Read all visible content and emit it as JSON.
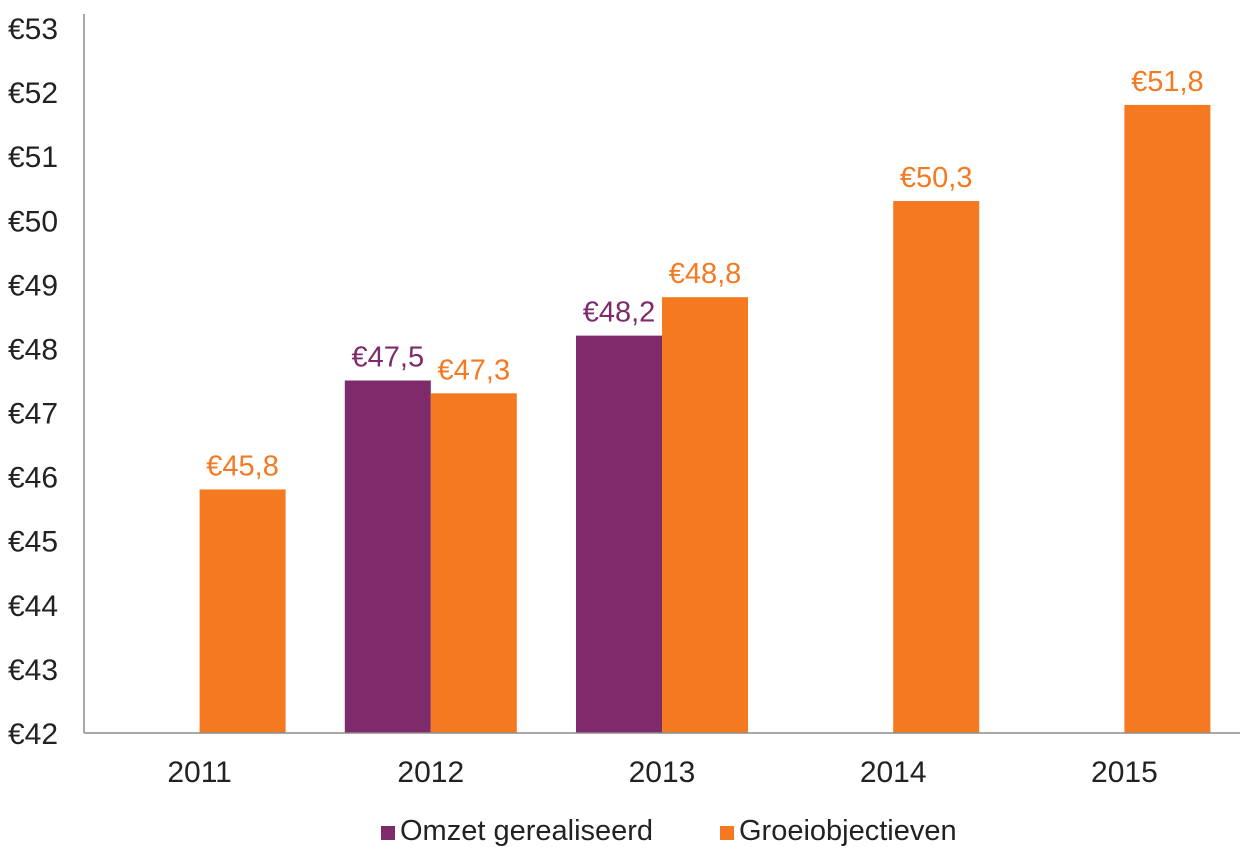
{
  "chart_data": {
    "type": "bar",
    "title": "",
    "xlabel": "",
    "ylabel": "",
    "categories": [
      "2011",
      "2012",
      "2013",
      "2014",
      "2015"
    ],
    "ylim": [
      42,
      53
    ],
    "yticks": [
      42,
      43,
      44,
      45,
      46,
      47,
      48,
      49,
      50,
      51,
      52,
      53
    ],
    "ytick_prefix": "€",
    "grid": false,
    "legend_position": "bottom",
    "series": [
      {
        "name": "Omzet gerealiseerd",
        "color": "#7e2a6b",
        "values": [
          null,
          47.5,
          48.2,
          null,
          null
        ],
        "labels": [
          "",
          "€47,5",
          "€48,2",
          "",
          ""
        ]
      },
      {
        "name": "Groeiobjectieven",
        "color": "#f47920",
        "values": [
          45.8,
          47.3,
          48.8,
          50.3,
          51.8
        ],
        "labels": [
          "€45,8",
          "€47,3",
          "€48,8",
          "€50,3",
          "€51,8"
        ]
      }
    ]
  }
}
